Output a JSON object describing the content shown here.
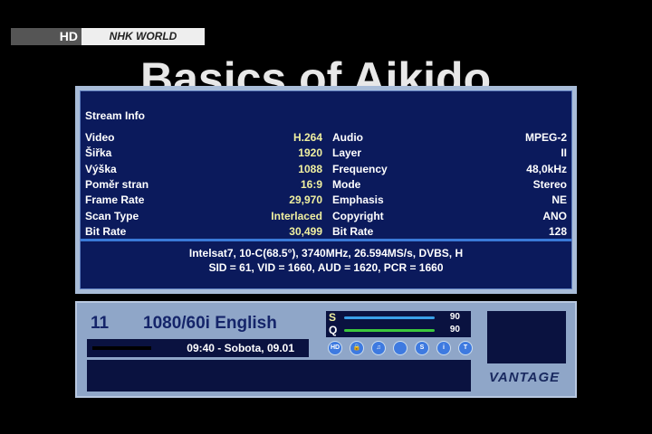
{
  "channel_logo": {
    "hd": "HD",
    "name": "NHK WORLD"
  },
  "background_title": "Basics of Aikido",
  "stream_info": {
    "title": "Stream Info",
    "rows": [
      {
        "label": "Video",
        "value": "H.264",
        "label2": "Audio",
        "value2": "MPEG-2"
      },
      {
        "label": "Šiřka",
        "value": "1920",
        "label2": "Layer",
        "value2": "II"
      },
      {
        "label": "Výška",
        "value": "1088",
        "label2": "Frequency",
        "value2": "48,0kHz"
      },
      {
        "label": "Poměr stran",
        "value": "16:9",
        "label2": "Mode",
        "value2": "Stereo"
      },
      {
        "label": "Frame Rate",
        "value": "29,970",
        "label2": "Emphasis",
        "value2": "NE"
      },
      {
        "label": "Scan Type",
        "value": "Interlaced",
        "label2": "Copyright",
        "value2": "ANO"
      },
      {
        "label": "Bit Rate",
        "value": "30,499",
        "label2": "Bit Rate",
        "value2": "128"
      }
    ],
    "transponder": "Intelsat7, 10-C(68.5°), 3740MHz, 26.594MS/s, DVBS, H",
    "pids": "SID = 61, VID = 1660, AUD = 1620, PCR = 1660"
  },
  "infobar": {
    "channel_number": "11",
    "channel_name": "1080/60i English",
    "datetime": "09:40 - Sobota, 09.01",
    "signal": {
      "s_label": "S",
      "s_value": "90",
      "q_label": "Q",
      "q_value": "90",
      "s_percent": 90,
      "q_percent": 90
    },
    "icons": [
      "hd-icon",
      "lock-icon",
      "music-icon",
      "subtitle-icon",
      "scramble-icon",
      "info-icon",
      "teletext-icon"
    ],
    "brand": "VANTAGE"
  }
}
